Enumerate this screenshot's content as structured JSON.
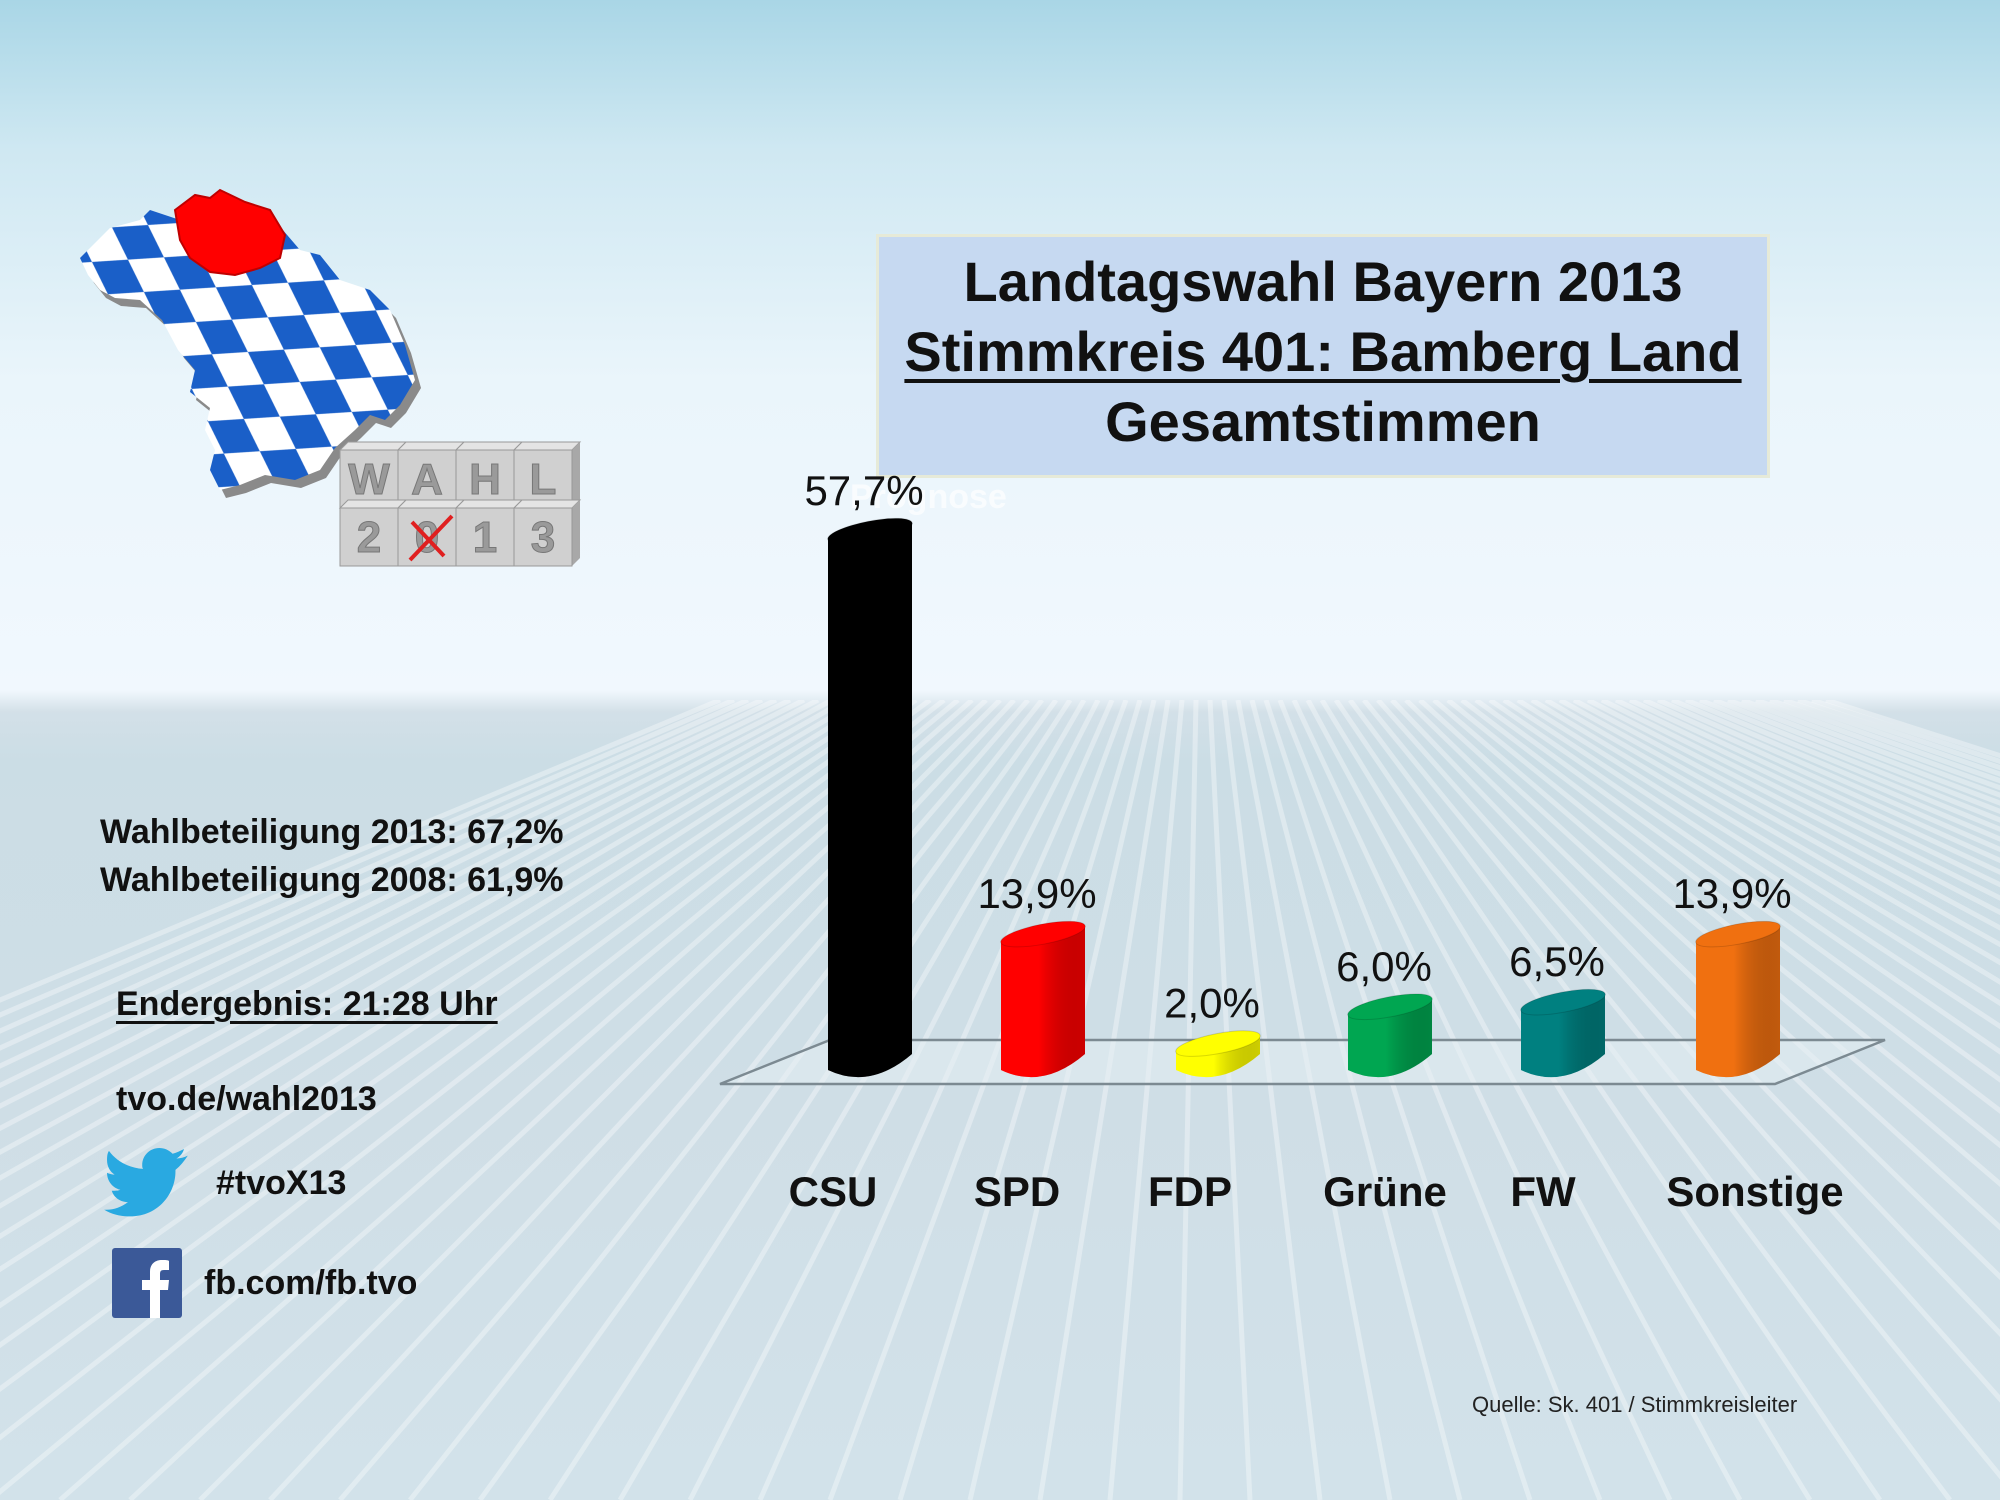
{
  "title": {
    "line1": "Landtagswahl Bayern 2013",
    "line2": "Stimmkreis 401: Bamberg Land",
    "line3": "Gesamtstimmen"
  },
  "ghost_text": "Prognose",
  "logo": {
    "cubes_top": [
      "W",
      "A",
      "H",
      "L"
    ],
    "cubes_bottom": [
      "2",
      "0",
      "1",
      "3"
    ],
    "colors": {
      "blue": "#1a5fc8",
      "red": "#ff0000",
      "cube": "#c8c8c8"
    }
  },
  "info": {
    "turnout_2013": "Wahlbeteiligung 2013: 67,2%",
    "turnout_2008": "Wahlbeteiligung 2008: 61,9%",
    "final_result": "Endergebnis:  21:28 Uhr",
    "website": "tvo.de/wahl2013",
    "twitter_icon": "twitter-bird-icon",
    "twitter": "#tvoX13",
    "facebook_icon": "facebook-f-icon",
    "facebook": "fb.com/fb.tvo"
  },
  "source": "Quelle: Sk. 401 / Stimmkreisleiter",
  "chart_data": {
    "type": "bar",
    "title": "Landtagswahl Bayern 2013 – Stimmkreis 401: Bamberg Land – Gesamtstimmen",
    "xlabel": "",
    "ylabel": "",
    "ylim": [
      0,
      60
    ],
    "grid": false,
    "legend": "none",
    "categories": [
      "CSU",
      "SPD",
      "FDP",
      "Grüne",
      "FW",
      "Sonstige"
    ],
    "values": [
      57.7,
      13.9,
      2.0,
      6.0,
      6.5,
      13.9
    ],
    "labels": [
      "57,7%",
      "13,9%",
      "2,0%",
      "6,0%",
      "6,5%",
      "13,9%"
    ],
    "colors": [
      "#000000",
      "#ff0000",
      "#ffff00",
      "#00a651",
      "#008080",
      "#f07010"
    ],
    "unit": "%"
  }
}
